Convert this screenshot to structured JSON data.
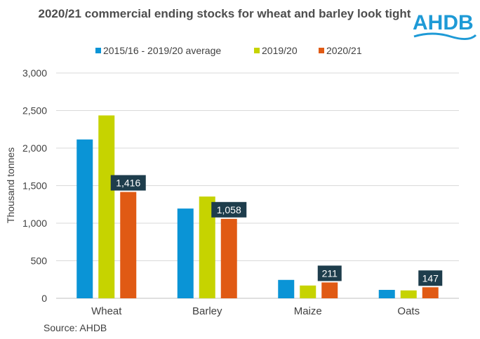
{
  "logo_text": "AHDB",
  "source": "Source: AHDB",
  "colors": {
    "series_1": "#0a94d6",
    "series_2": "#c6d300",
    "series_3": "#e05a14",
    "label_bg": "#1e3d4c",
    "grid": "#d9d9d9",
    "logo": "#1e9ad6"
  },
  "chart_data": {
    "type": "bar",
    "title": "2020/21 commercial ending stocks for wheat and barley look tight",
    "xlabel": "",
    "ylabel": "Thousand tonnes",
    "ylim": [
      0,
      3000
    ],
    "yticks": [
      0,
      500,
      1000,
      1500,
      2000,
      2500,
      3000
    ],
    "ytick_labels": [
      "0",
      "500",
      "1,000",
      "1,500",
      "2,000",
      "2,500",
      "3,000"
    ],
    "categories": [
      "Wheat",
      "Barley",
      "Maize",
      "Oats"
    ],
    "series": [
      {
        "name": "2015/16 - 2019/20 average",
        "values": [
          2115,
          1195,
          245,
          112
        ]
      },
      {
        "name": "2019/20",
        "values": [
          2435,
          1355,
          170,
          105
        ]
      },
      {
        "name": "2020/21",
        "values": [
          1416,
          1058,
          211,
          147
        ],
        "labels": [
          "1,416",
          "1,058",
          "211",
          "147"
        ]
      }
    ],
    "legend_position": "top",
    "grid": true
  }
}
